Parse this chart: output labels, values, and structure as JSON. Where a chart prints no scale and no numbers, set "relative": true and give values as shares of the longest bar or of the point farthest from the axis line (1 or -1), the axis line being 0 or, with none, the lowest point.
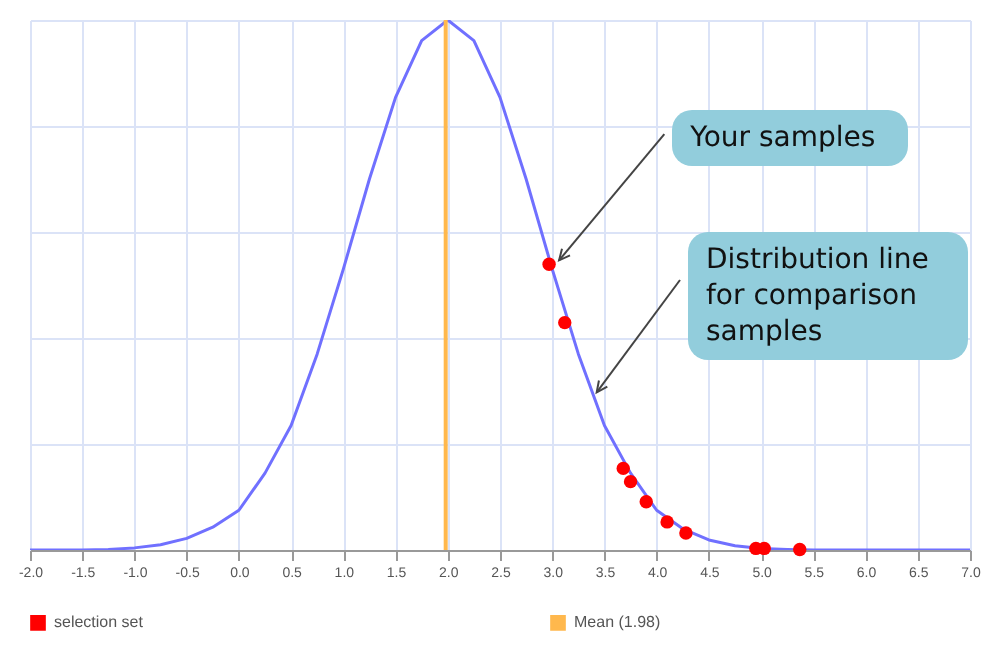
{
  "chart_data": {
    "type": "line",
    "relative": true,
    "xlim": [
      -2,
      7
    ],
    "xticks": [
      {
        "value": -2,
        "label": "-2.0"
      },
      -1.5,
      {
        "value": -1,
        "label": "-1.0"
      },
      -0.5,
      {
        "value": 0,
        "label": "0.0"
      },
      0.5,
      {
        "value": 1,
        "label": "1.0"
      },
      1.5,
      {
        "value": 2,
        "label": "2.0"
      },
      2.5,
      {
        "value": 3,
        "label": "3.0"
      },
      3.5,
      {
        "value": 4,
        "label": "4.0"
      },
      4.5,
      {
        "value": 5,
        "label": "5.0"
      },
      5.5,
      {
        "value": 6,
        "label": "6.0"
      },
      6.5,
      {
        "value": 7,
        "label": "7.0"
      }
    ],
    "series": [
      {
        "type": "line",
        "color": "#7070ff",
        "x": [
          -2,
          -1.75,
          -1.5,
          -1.25,
          -1,
          -0.75,
          -0.5,
          -0.25,
          0,
          0.25,
          0.5,
          0.75,
          1,
          1.25,
          1.5,
          1.75,
          2,
          2.25,
          2.5,
          2.75,
          3,
          3.25,
          3.5,
          3.75,
          4,
          4.25,
          4.5,
          4.75,
          5,
          5.25,
          5.5,
          6,
          6.5,
          7
        ],
        "values": [
          0,
          0,
          0,
          0.001,
          0.004,
          0.01,
          0.022,
          0.043,
          0.075,
          0.145,
          0.235,
          0.37,
          0.53,
          0.7,
          0.854,
          0.961,
          1,
          0.961,
          0.854,
          0.7,
          0.53,
          0.37,
          0.235,
          0.145,
          0.075,
          0.04,
          0.019,
          0.008,
          0.003,
          0.001,
          0,
          0,
          0,
          0
        ]
      },
      {
        "type": "scatter",
        "name": "selection set",
        "color": "#ff0000",
        "marker": "circle",
        "x": [
          2.97,
          3.12,
          3.68,
          3.75,
          3.9,
          4.1,
          4.28,
          4.95,
          5.03,
          5.37
        ],
        "values": [
          0.539,
          0.429,
          0.154,
          0.129,
          0.091,
          0.053,
          0.032,
          0.003,
          0.003,
          0.001
        ]
      }
    ],
    "ref_lines": [
      {
        "axis": "x",
        "value": 1.98,
        "label": "Mean (1.98)",
        "color": "#ffb84d"
      }
    ],
    "annotations": [
      {
        "text": "Your samples",
        "x": 2.97,
        "y": 0.539
      },
      {
        "text": "Distribution line for comparison samples",
        "x": 3.33,
        "y": 0.29
      }
    ],
    "grid": true,
    "legend": "bottom",
    "line_style": "solid"
  }
}
